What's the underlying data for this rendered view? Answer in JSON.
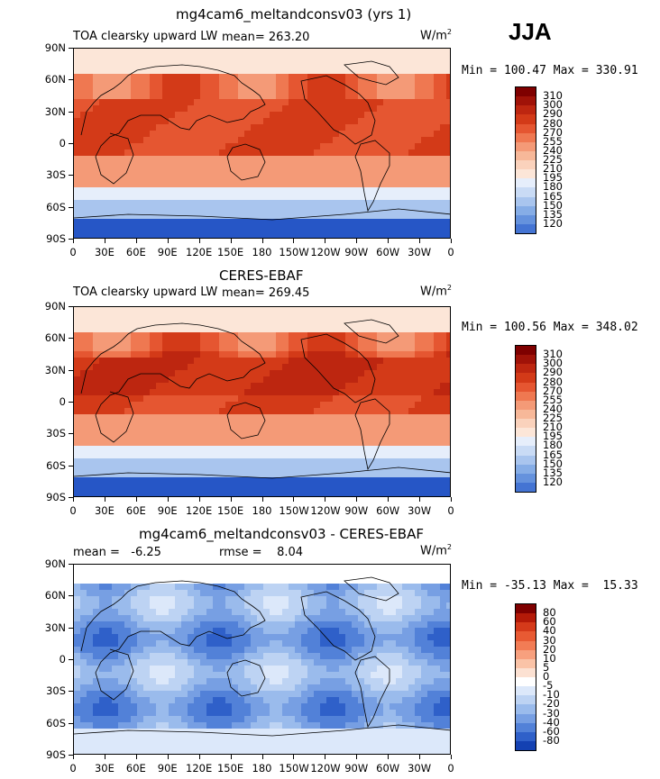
{
  "season": "JJA",
  "colors": {
    "positive": [
      "#fbe1cf",
      "#f9c5a6",
      "#f6a07a",
      "#f07b52",
      "#e55a32",
      "#d63d1a",
      "#c02b10",
      "#a21b08",
      "#841005"
    ],
    "negative": [
      "#e2ecfb",
      "#c7d9f6",
      "#a6c3f0",
      "#84abe9",
      "#6390e0",
      "#4877d6",
      "#2f5bcd",
      "#1a40be",
      "#0b28a6",
      "#001a80"
    ],
    "pos_scale": [
      "#7f0000",
      "#a01208",
      "#bd2610",
      "#d33a18",
      "#e55631",
      "#ef7851",
      "#f49a77",
      "#f7b899",
      "#fad2bc",
      "#fce6d8",
      "#e6eefb",
      "#c9dbf5",
      "#a9c5ee",
      "#86ade6",
      "#6592dd",
      "#4474d3",
      "#2656c6",
      "#123bb3",
      "#001e90"
    ],
    "diff_scale": [
      "#7f0000",
      "#b41a08",
      "#d53a1a",
      "#e85a33",
      "#f27c55",
      "#f7a07e",
      "#fac3a7",
      "#fce1d2",
      "#ffffff",
      "#dce8fa",
      "#bdd3f3",
      "#9abbec",
      "#779fe3",
      "#5281d8",
      "#2f60c9",
      "#1441b2",
      "#02208f"
    ]
  },
  "panels": [
    {
      "title": "mg4cam6_meltandconsv03 (yrs 1)",
      "left_label": "TOA clearsky upward LW",
      "mean_label": "mean=",
      "mean_value": "263.20",
      "units": "W/m",
      "units_exp": "2",
      "minmax": "Min = 100.47 Max = 330.91",
      "kind": "model"
    },
    {
      "title": "CERES-EBAF",
      "left_label": "TOA clearsky upward LW",
      "mean_label": "mean=",
      "mean_value": "269.45",
      "units": "W/m",
      "units_exp": "2",
      "minmax": "Min = 100.56 Max = 348.02",
      "kind": "obs"
    },
    {
      "title": "mg4cam6_meltandconsv03 - CERES-EBAF",
      "left_label": "mean =   -6.25",
      "rmse_label": "rmse =    8.04",
      "units": "W/m",
      "units_exp": "2",
      "minmax": "Min = -35.13 Max =  15.33",
      "kind": "diff"
    }
  ],
  "lat_ticks": [
    "90N",
    "60N",
    "30N",
    "0",
    "30S",
    "60S",
    "90S"
  ],
  "lon_ticks": [
    "0",
    "30E",
    "60E",
    "90E",
    "120E",
    "150E",
    "180",
    "150W",
    "120W",
    "90W",
    "60W",
    "30W",
    "0"
  ],
  "colorbar_levels": [
    "310",
    "300",
    "290",
    "280",
    "270",
    "255",
    "240",
    "225",
    "210",
    "195",
    "180",
    "165",
    "150",
    "135",
    "120"
  ],
  "diff_levels": [
    "80",
    "60",
    "40",
    "30",
    "20",
    "10",
    "5",
    "0",
    "-5",
    "-10",
    "-20",
    "-30",
    "-40",
    "-60",
    "-80"
  ]
}
